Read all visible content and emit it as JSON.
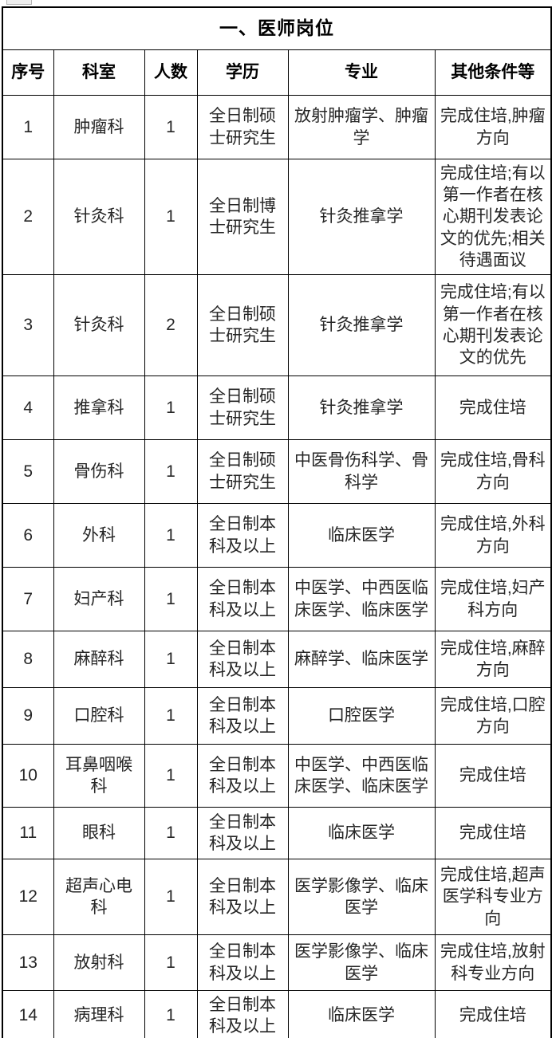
{
  "page": {
    "background_color": "#ffffff",
    "border_color": "#000000",
    "text_color": "#262626"
  },
  "table": {
    "title": "一、医师岗位",
    "columns": [
      "序号",
      "科室",
      "人数",
      "学历",
      "专业",
      "其他条件等"
    ],
    "rows": [
      {
        "no": "1",
        "dept": "肿瘤科",
        "count": "1",
        "degree": "全日制硕士研究生",
        "major": "放射肿瘤学、肿瘤学",
        "other": "完成住培,肿瘤方向"
      },
      {
        "no": "2",
        "dept": "针灸科",
        "count": "1",
        "degree": "全日制博士研究生",
        "major": "针灸推拿学",
        "other": "完成住培;有以第一作者在核心期刊发表论文的优先;相关待遇面议"
      },
      {
        "no": "3",
        "dept": "针灸科",
        "count": "2",
        "degree": "全日制硕士研究生",
        "major": "针灸推拿学",
        "other": "完成住培;有以第一作者在核心期刊发表论文的优先"
      },
      {
        "no": "4",
        "dept": "推拿科",
        "count": "1",
        "degree": "全日制硕士研究生",
        "major": "针灸推拿学",
        "other": "完成住培"
      },
      {
        "no": "5",
        "dept": "骨伤科",
        "count": "1",
        "degree": "全日制硕士研究生",
        "major": "中医骨伤科学、骨科学",
        "other": "完成住培,骨科方向"
      },
      {
        "no": "6",
        "dept": "外科",
        "count": "1",
        "degree": "全日制本科及以上",
        "major": "临床医学",
        "other": "完成住培,外科方向"
      },
      {
        "no": "7",
        "dept": "妇产科",
        "count": "1",
        "degree": "全日制本科及以上",
        "major": "中医学、中西医临床医学、临床医学",
        "other": "完成住培,妇产科方向"
      },
      {
        "no": "8",
        "dept": "麻醉科",
        "count": "1",
        "degree": "全日制本科及以上",
        "major": "麻醉学、临床医学",
        "other": "完成住培,麻醉方向"
      },
      {
        "no": "9",
        "dept": "口腔科",
        "count": "1",
        "degree": "全日制本科及以上",
        "major": "口腔医学",
        "other": "完成住培,口腔方向"
      },
      {
        "no": "10",
        "dept": "耳鼻咽喉科",
        "count": "1",
        "degree": "全日制本科及以上",
        "major": "中医学、中西医临床医学、临床医学",
        "other": "完成住培"
      },
      {
        "no": "11",
        "dept": "眼科",
        "count": "1",
        "degree": "全日制本科及以上",
        "major": "临床医学",
        "other": "完成住培"
      },
      {
        "no": "12",
        "dept": "超声心电科",
        "count": "1",
        "degree": "全日制本科及以上",
        "major": "医学影像学、临床医学",
        "other": "完成住培,超声医学科专业方向"
      },
      {
        "no": "13",
        "dept": "放射科",
        "count": "1",
        "degree": "全日制本科及以上",
        "major": "医学影像学、临床医学",
        "other": "完成住培,放射科专业方向"
      },
      {
        "no": "14",
        "dept": "病理科",
        "count": "1",
        "degree": "全日制本科及以上",
        "major": "临床医学",
        "other": "完成住培"
      }
    ]
  }
}
